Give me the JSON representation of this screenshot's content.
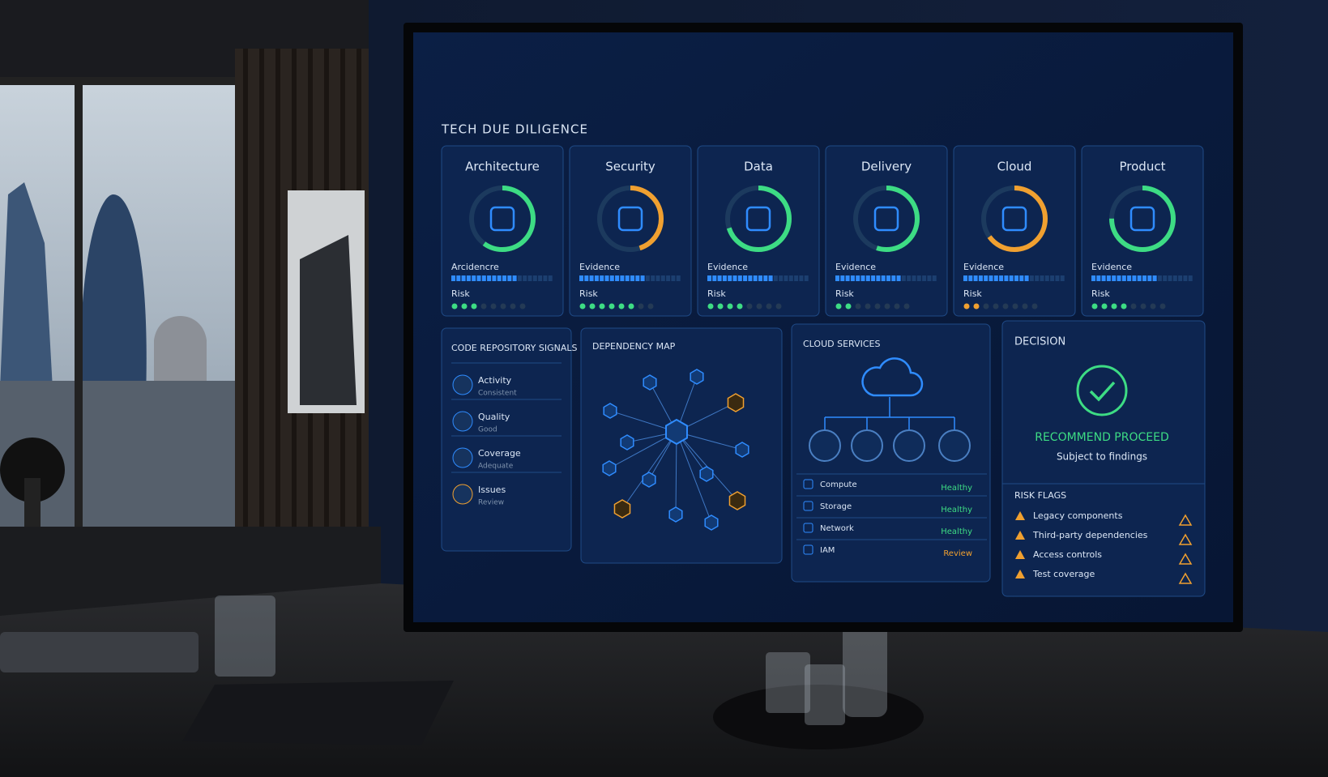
{
  "header": {
    "title": "TECH DUE DILIGENCE"
  },
  "cards": [
    {
      "title": "Architecture",
      "evidence": "Arcidencre",
      "risk": "Risk"
    },
    {
      "title": "Security",
      "evidence": "Evidence",
      "risk": "Risk"
    },
    {
      "title": "Data",
      "evidence": "Evidence",
      "risk": "Risk"
    },
    {
      "title": "Delivery",
      "evidence": "Evidence",
      "risk": "Risk"
    },
    {
      "title": "Cloud",
      "evidence": "Evidence",
      "risk": "Risk"
    },
    {
      "title": "Product",
      "evidence": "Evidence",
      "risk": "Risk"
    }
  ],
  "code_repository": {
    "title": "CODE REPOSITORY SIGNALS",
    "items": [
      {
        "label": "Activity",
        "status": "Consistent"
      },
      {
        "label": "Quality",
        "status": "Good"
      },
      {
        "label": "Coverage",
        "status": "Adequate"
      },
      {
        "label": "Issues",
        "status": "Review"
      }
    ]
  },
  "dependency_map": {
    "title": "DEPENDENCY MAP"
  },
  "cloud_services": {
    "title": "CLOUD SERVICES",
    "rows": [
      {
        "label": "Compute",
        "status": "Healthy"
      },
      {
        "label": "Storage",
        "status": "Healthy"
      },
      {
        "label": "Network",
        "status": "Healthy"
      },
      {
        "label": "IAM",
        "status": "Review"
      }
    ]
  },
  "decision": {
    "title": "DECISION",
    "verdict": "RECOMMEND PROCEED",
    "note": "Subject to findings",
    "risk_flags_title": "RISK FLAGS",
    "risk_flags": [
      "Legacy components",
      "Third-party dependencies",
      "Access controls",
      "Test coverage"
    ]
  }
}
